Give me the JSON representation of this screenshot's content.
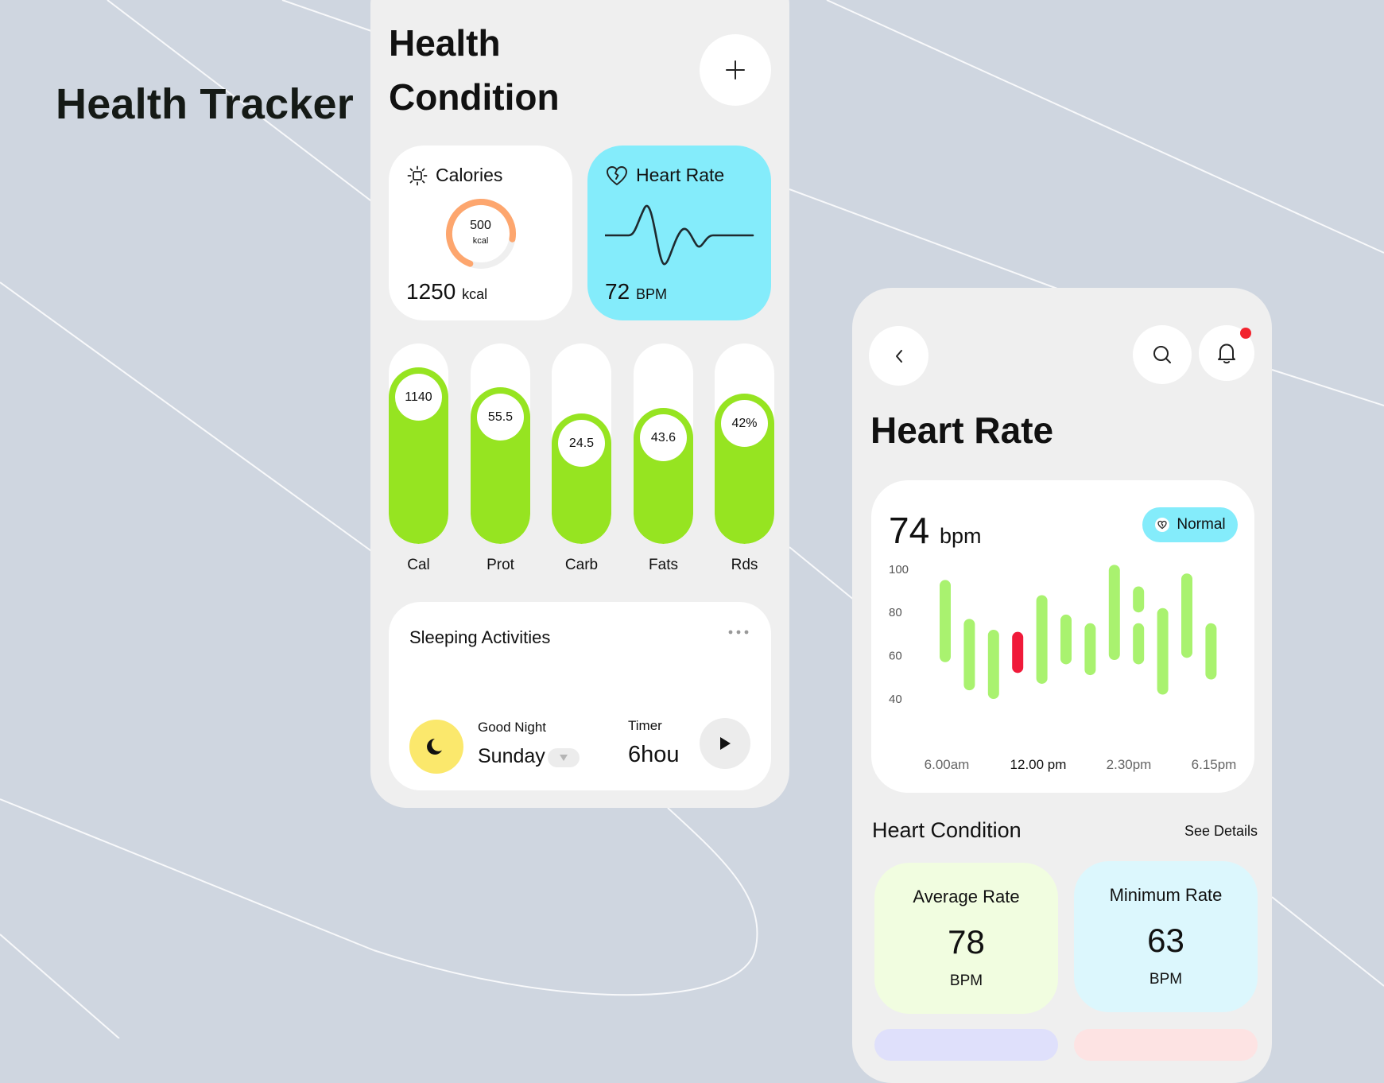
{
  "hero": {
    "title": "Health Tracker"
  },
  "condition_screen": {
    "title_line1": "Health",
    "title_line2": "Condition",
    "add_icon": "plus-icon",
    "calories": {
      "label": "Calories",
      "icon": "sun-icon",
      "ring_value": "500",
      "ring_unit": "kcal",
      "ring_progress": 0.72,
      "total": "1250",
      "total_unit": "kcal",
      "ring_color": "#fda66e"
    },
    "heart_rate": {
      "label": "Heart Rate",
      "icon": "broken-heart-icon",
      "value": "72",
      "unit": "BPM",
      "card_color": "#84ecfb"
    },
    "nutrients": [
      {
        "label": "Cal",
        "value": "1140",
        "level": 0.88
      },
      {
        "label": "Prot",
        "value": "55.5",
        "level": 0.78
      },
      {
        "label": "Carb",
        "value": "24.5",
        "level": 0.65
      },
      {
        "label": "Fats",
        "value": "43.6",
        "level": 0.68
      },
      {
        "label": "Rds",
        "value": "42%",
        "level": 0.75
      }
    ],
    "nutrient_color": "#96e421",
    "sleep": {
      "title": "Sleeping Activities",
      "more_icon": "more-dots-icon",
      "moon_icon": "moon-icon",
      "greeting": "Good Night",
      "day": "Sunday",
      "timer_label": "Timer",
      "timer_value": "6hou",
      "play_icon": "play-icon"
    }
  },
  "heart_screen": {
    "back_icon": "chevron-left-icon",
    "search_icon": "search-icon",
    "bell_icon": "bell-icon",
    "title": "Heart Rate",
    "current": {
      "value": "74",
      "unit": "bpm"
    },
    "status_badge": {
      "label": "Normal",
      "icon": "heart-icon"
    },
    "heart_condition": {
      "title": "Heart Condition",
      "see_details": "See Details",
      "cards": [
        {
          "label": "Average Rate",
          "value": "78",
          "unit": "BPM",
          "color": "#f1fde0"
        },
        {
          "label": "Minimum Rate",
          "value": "63",
          "unit": "BPM",
          "color": "#dcf7fd"
        }
      ]
    }
  },
  "chart_data": {
    "type": "bar",
    "subtype": "range-bar",
    "y_ticks": [
      100,
      80,
      60,
      40
    ],
    "ylim": [
      35,
      105
    ],
    "x_tick_labels": [
      "6.00am",
      "12.00 pm",
      "2.30pm",
      "6.15pm"
    ],
    "highlight_tick": "12.00 pm",
    "bars": [
      {
        "low": 57,
        "high": 95
      },
      {
        "low": 44,
        "high": 77
      },
      {
        "low": 40,
        "high": 72
      },
      {
        "low": 52,
        "high": 71,
        "highlight": true
      },
      {
        "low": 47,
        "high": 88
      },
      {
        "low": 56,
        "high": 79
      },
      {
        "low": 51,
        "high": 75
      },
      {
        "low": 58,
        "high": 102
      },
      {
        "low": 56,
        "high": 75,
        "segment": 2
      },
      {
        "low": 80,
        "high": 92,
        "segment": 1
      },
      {
        "low": 42,
        "high": 82
      },
      {
        "low": 59,
        "high": 98
      },
      {
        "low": 49,
        "high": 75
      }
    ],
    "colors": {
      "normal": "#a9f26f",
      "highlight": "#f01a3a"
    }
  }
}
